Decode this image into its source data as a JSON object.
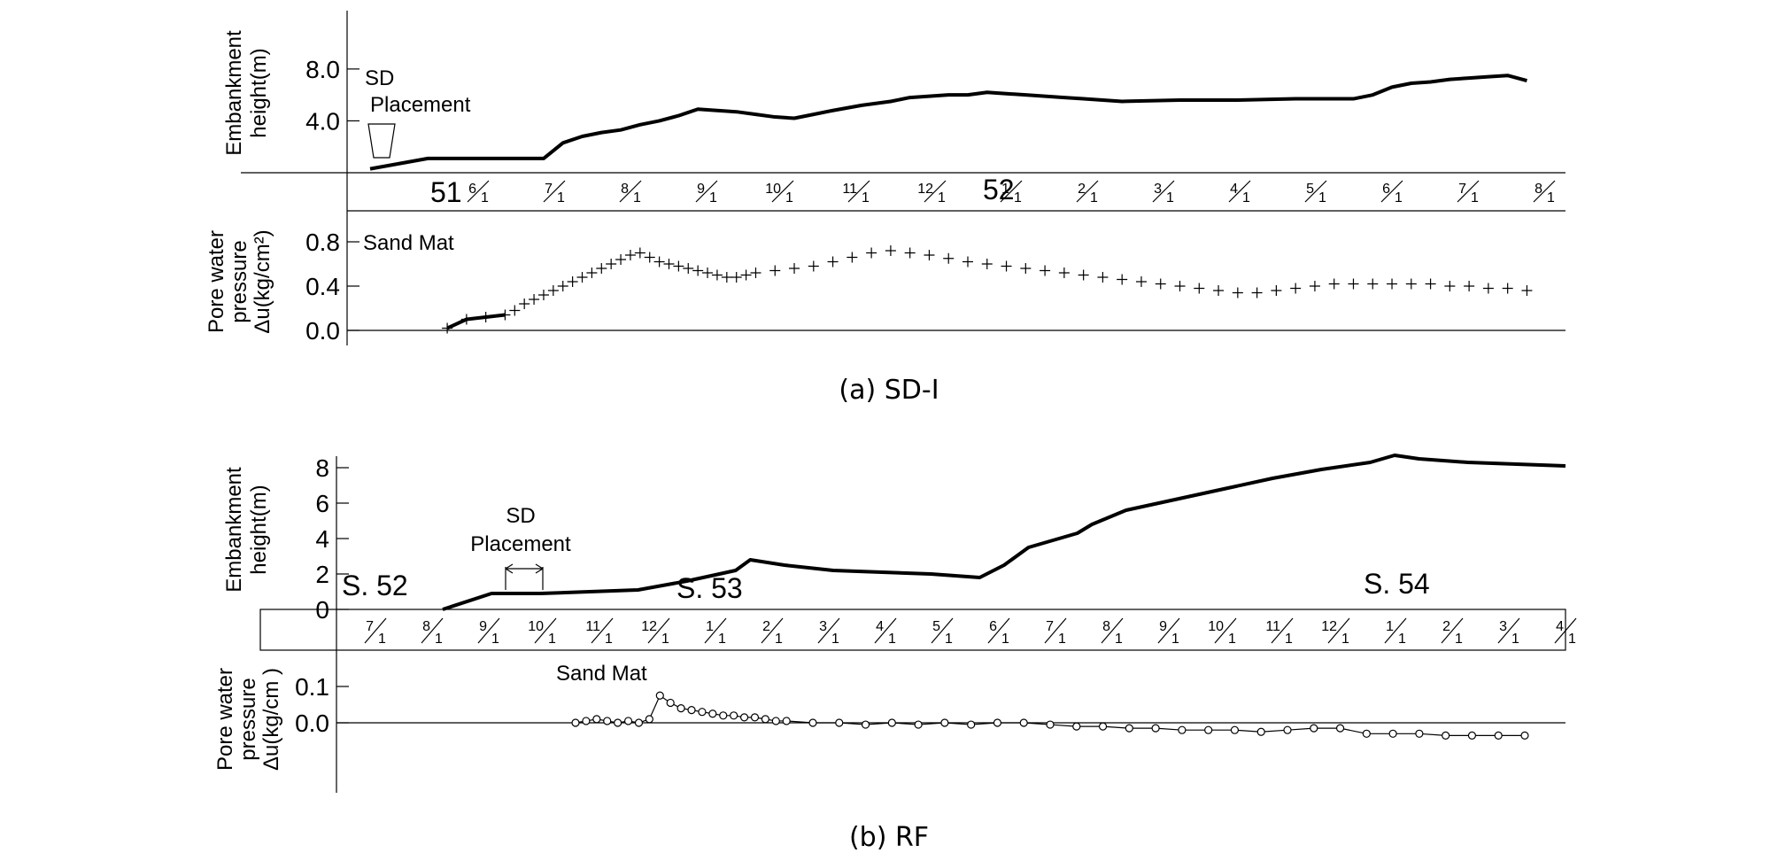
{
  "chart_data": [
    {
      "type": "line",
      "caption": "(a) SD-I",
      "upper": {
        "ylabel": [
          "Embankment",
          "height(m)"
        ],
        "yticks": [
          "4.0",
          "8.0"
        ],
        "yticks_values": [
          4.0,
          8.0
        ],
        "annotation": [
          "SD",
          "Placement"
        ],
        "series": [
          {
            "name": "",
            "x": [
              0,
              6,
              12,
              15,
              18,
              20,
              22,
              24,
              26,
              28,
              30,
              32,
              34,
              36,
              38,
              40,
              42,
              44,
              46,
              48,
              51,
              54,
              56,
              60,
              62,
              64,
              66,
              68,
              70,
              72,
              74,
              76,
              78,
              84,
              90,
              96,
              102,
              104,
              106,
              108,
              110,
              112,
              114,
              116,
              118,
              120
            ],
            "y": [
              0.3,
              1.1,
              1.1,
              1.1,
              1.1,
              2.3,
              2.8,
              3.1,
              3.3,
              3.7,
              4.0,
              4.4,
              4.9,
              4.8,
              4.7,
              4.5,
              4.3,
              4.2,
              4.5,
              4.8,
              5.2,
              5.5,
              5.8,
              6.0,
              6.0,
              6.2,
              6.1,
              6.0,
              5.9,
              5.8,
              5.7,
              5.6,
              5.5,
              5.6,
              5.6,
              5.7,
              5.7,
              6.0,
              6.6,
              6.9,
              7.0,
              7.2,
              7.3,
              7.4,
              7.5,
              7.1
            ]
          }
        ]
      },
      "axis": {
        "year_labels": [
          "51",
          "52"
        ],
        "month_labels": [
          "6",
          "7",
          "8",
          "9",
          "10",
          "11",
          "12",
          "1",
          "2",
          "3",
          "4",
          "5",
          "6",
          "7",
          "8"
        ],
        "month_denominator": "1"
      },
      "lower": {
        "ylabel": [
          "Pore water",
          "pressure",
          "Δu(kg/cm²)"
        ],
        "yticks": [
          "0.0",
          "0.4",
          "0.8"
        ],
        "yticks_values": [
          0.0,
          0.4,
          0.8
        ],
        "annotation": "Sand Mat",
        "series": [
          {
            "name": "",
            "marker": "+",
            "x": [
              8,
              10,
              12,
              14,
              15,
              16,
              17,
              18,
              19,
              20,
              21,
              22,
              23,
              24,
              25,
              26,
              27,
              28,
              29,
              30,
              31,
              32,
              33,
              34,
              35,
              36,
              37,
              38,
              39,
              40,
              42,
              44,
              46,
              48,
              50,
              52,
              54,
              56,
              58,
              60,
              62,
              64,
              66,
              68,
              70,
              72,
              74,
              76,
              78,
              80,
              82,
              84,
              86,
              88,
              90,
              92,
              94,
              96,
              98,
              100,
              102,
              104,
              106,
              108,
              110,
              112,
              114,
              116,
              118,
              120
            ],
            "y": [
              0.02,
              0.1,
              0.12,
              0.14,
              0.18,
              0.24,
              0.28,
              0.32,
              0.36,
              0.4,
              0.44,
              0.48,
              0.52,
              0.56,
              0.6,
              0.64,
              0.68,
              0.7,
              0.66,
              0.62,
              0.6,
              0.58,
              0.56,
              0.54,
              0.52,
              0.5,
              0.48,
              0.48,
              0.5,
              0.52,
              0.54,
              0.56,
              0.58,
              0.62,
              0.66,
              0.7,
              0.72,
              0.7,
              0.68,
              0.65,
              0.62,
              0.6,
              0.58,
              0.56,
              0.54,
              0.52,
              0.5,
              0.48,
              0.46,
              0.44,
              0.42,
              0.4,
              0.38,
              0.36,
              0.34,
              0.34,
              0.36,
              0.38,
              0.4,
              0.42,
              0.42,
              0.42,
              0.42,
              0.42,
              0.42,
              0.4,
              0.4,
              0.38,
              0.38,
              0.36
            ]
          }
        ]
      }
    },
    {
      "type": "line",
      "caption": "(b) RF",
      "upper": {
        "ylabel": [
          "Embankment",
          "height(m)"
        ],
        "yticks": [
          "0",
          "2",
          "4",
          "6",
          "8"
        ],
        "yticks_values": [
          0,
          2,
          4,
          6,
          8
        ],
        "annotation": [
          "SD",
          "Placement"
        ],
        "labels": [
          "S. 52",
          "S. 53",
          "S. 54"
        ],
        "series": [
          {
            "name": "",
            "x": [
              0,
              1,
              2,
              4,
              5,
              6,
              6.3,
              7,
              8,
              9,
              10,
              11,
              11.5,
              12,
              13,
              13.3,
              14,
              15,
              16,
              17,
              18,
              19,
              19.5,
              20,
              21,
              22,
              23
            ],
            "y": [
              0,
              0.9,
              0.9,
              1.1,
              1.6,
              2.2,
              2.8,
              2.5,
              2.2,
              2.1,
              2.0,
              1.8,
              2.5,
              3.5,
              4.3,
              4.8,
              5.6,
              6.2,
              6.8,
              7.4,
              7.9,
              8.3,
              8.7,
              8.5,
              8.3,
              8.2,
              8.1
            ]
          }
        ]
      },
      "axis": {
        "month_labels": [
          "7",
          "8",
          "9",
          "10",
          "11",
          "12",
          "1",
          "2",
          "3",
          "4",
          "5",
          "6",
          "7",
          "8",
          "9",
          "10",
          "11",
          "12",
          "1",
          "2",
          "3",
          "4"
        ],
        "month_denominator": "1"
      },
      "lower": {
        "ylabel": [
          "Pore water",
          "pressure",
          "Δu(kg/cm )"
        ],
        "yticks": [
          "0.0",
          "0.1"
        ],
        "yticks_values": [
          0.0,
          0.1
        ],
        "annotation": "Sand Mat",
        "series": [
          {
            "name": "",
            "marker": "o",
            "x": [
              4.0,
              4.2,
              4.4,
              4.6,
              4.8,
              5.0,
              5.2,
              5.4,
              5.6,
              5.8,
              6.0,
              6.2,
              6.4,
              6.6,
              6.8,
              7.0,
              7.2,
              7.4,
              7.6,
              7.8,
              8.0,
              8.5,
              9.0,
              9.5,
              10.0,
              10.5,
              11.0,
              11.5,
              12.0,
              12.5,
              13.0,
              13.5,
              14.0,
              14.5,
              15.0,
              15.5,
              16.0,
              16.5,
              17.0,
              17.5,
              18.0,
              18.5,
              19.0,
              19.5,
              20.0,
              20.5,
              21.0,
              21.5,
              22.0
            ],
            "y": [
              0.0,
              0.005,
              0.01,
              0.005,
              0.0,
              0.005,
              0.0,
              0.01,
              0.075,
              0.055,
              0.04,
              0.035,
              0.03,
              0.025,
              0.02,
              0.02,
              0.015,
              0.015,
              0.01,
              0.005,
              0.005,
              0.0,
              0.0,
              -0.005,
              0.0,
              -0.005,
              0.0,
              -0.005,
              0.0,
              0.0,
              -0.005,
              -0.01,
              -0.01,
              -0.015,
              -0.015,
              -0.02,
              -0.02,
              -0.02,
              -0.025,
              -0.02,
              -0.015,
              -0.015,
              -0.03,
              -0.03,
              -0.03,
              -0.035,
              -0.035,
              -0.035,
              -0.035
            ]
          }
        ]
      }
    }
  ]
}
